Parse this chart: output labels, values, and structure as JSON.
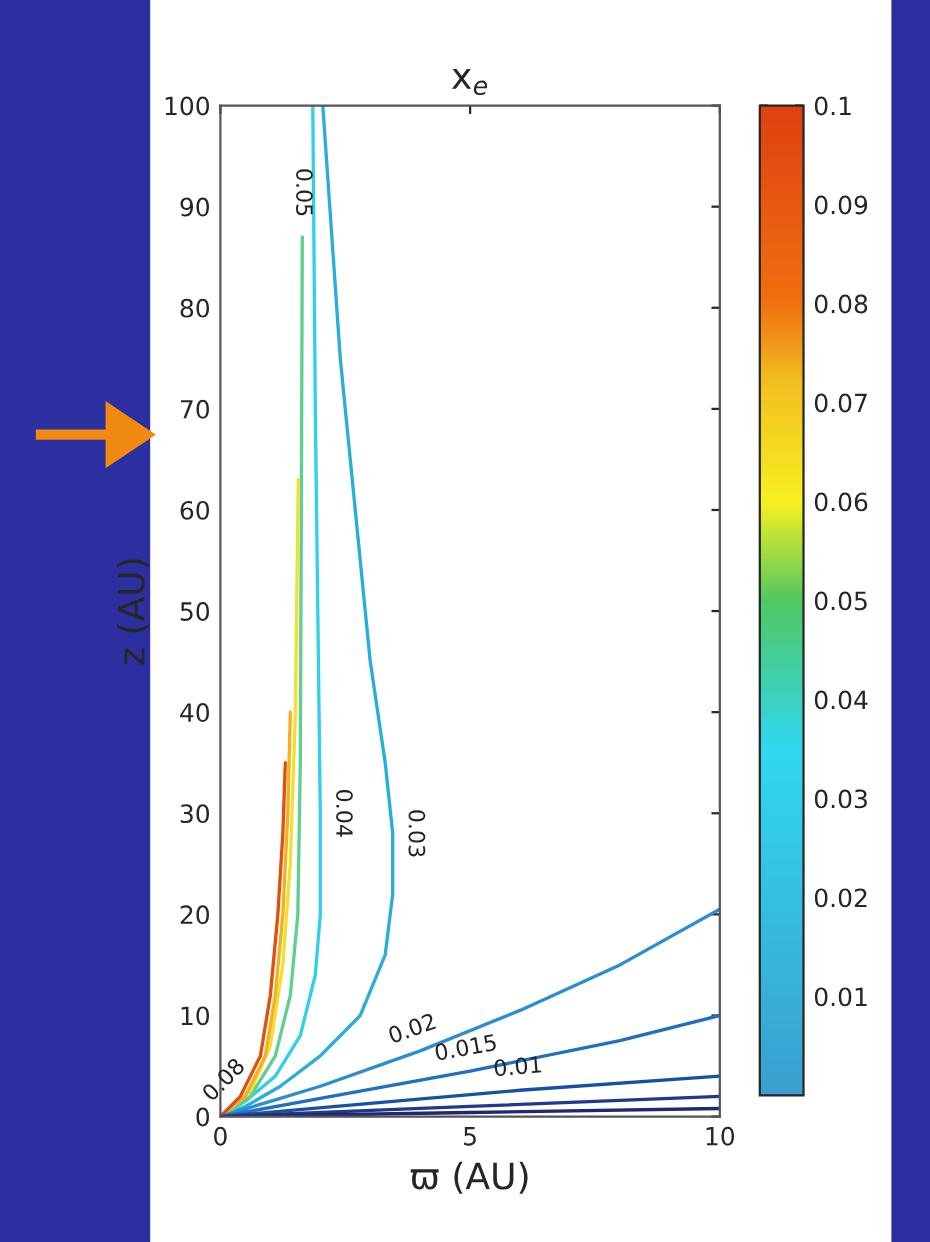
{
  "chart_data": {
    "type": "line",
    "title": "x$_{e}$",
    "xlabel": "ϖ (AU)",
    "ylabel": "z (AU)",
    "xlim": [
      0,
      10
    ],
    "ylim": [
      0,
      100
    ],
    "xticks": [
      0,
      5,
      10
    ],
    "yticks": [
      0,
      10,
      20,
      30,
      40,
      50,
      60,
      70,
      80,
      90,
      100
    ],
    "clim": [
      0,
      0.1
    ],
    "cticks": [
      0.01,
      0.02,
      0.03,
      0.04,
      0.05,
      0.06,
      0.07,
      0.08,
      0.09,
      0.1
    ],
    "grid": false,
    "legend": false,
    "marker": "none",
    "line_style": "solid",
    "annotations": [
      {
        "text": "0.03",
        "x": 3.45,
        "y": 28
      },
      {
        "text": "0.04",
        "x": 2.0,
        "y": 30
      },
      {
        "text": "0.05",
        "x": 1.64,
        "y": 87
      },
      {
        "text": "0.08",
        "x": 0.4,
        "y": 2
      },
      {
        "text": "0.02",
        "x": 4,
        "y": 6.5
      },
      {
        "text": "0.015",
        "x": 5,
        "y": 4.5
      },
      {
        "text": "0.01",
        "x": 6,
        "y": 2.6
      }
    ],
    "series": [
      {
        "color": "#2aaed8",
        "x": [
          0,
          0.5,
          1.2,
          2.0,
          2.8,
          3.3,
          3.45,
          3.45,
          3.3,
          3.0,
          2.7,
          2.4,
          2.05
        ],
        "values": [
          0,
          1,
          3,
          6,
          10,
          16,
          22,
          28,
          35,
          45,
          60,
          75,
          100
        ]
      },
      {
        "color": "#30d0e8",
        "x": [
          0,
          0.5,
          1.1,
          1.6,
          1.9,
          2.0,
          2.0,
          1.95,
          1.9,
          1.85
        ],
        "values": [
          0,
          1.5,
          4,
          8,
          14,
          20,
          30,
          50,
          70,
          100
        ]
      },
      {
        "color": "#60d090",
        "x": [
          0,
          0.6,
          1.1,
          1.4,
          1.55,
          1.6,
          1.62,
          1.64
        ],
        "values": [
          0,
          2,
          6,
          12,
          20,
          35,
          60,
          87
        ]
      },
      {
        "color": "#f0e030",
        "x": [
          0,
          0.6,
          1.0,
          1.25,
          1.4,
          1.5,
          1.56
        ],
        "values": [
          0,
          2.5,
          7,
          15,
          25,
          40,
          63
        ]
      },
      {
        "color": "#f8b020",
        "x": [
          0,
          0.5,
          0.9,
          1.1,
          1.25,
          1.35,
          1.4
        ],
        "values": [
          0,
          2,
          6,
          12,
          20,
          30,
          40
        ]
      },
      {
        "color": "#e05010",
        "x": [
          0,
          0.4,
          0.8,
          1.0,
          1.15,
          1.25,
          1.3
        ],
        "values": [
          0,
          2,
          6,
          12,
          20,
          28,
          35
        ]
      },
      {
        "color": "#2a8ed0",
        "x": [
          0,
          1,
          2,
          4,
          6,
          8,
          10
        ],
        "values": [
          0,
          1.5,
          3,
          6.5,
          10.5,
          15,
          20.5
        ]
      },
      {
        "color": "#2070c0",
        "x": [
          0,
          2,
          5,
          8,
          10
        ],
        "values": [
          0,
          1.8,
          4.5,
          7.5,
          10
        ]
      },
      {
        "color": "#1850a8",
        "x": [
          0,
          3,
          6,
          10
        ],
        "values": [
          0,
          1.3,
          2.6,
          4
        ]
      },
      {
        "color": "#203890",
        "x": [
          0,
          5,
          10
        ],
        "values": [
          0,
          1,
          2
        ]
      },
      {
        "color": "#202870",
        "x": [
          0,
          5,
          10
        ],
        "values": [
          0,
          0.4,
          0.8
        ]
      }
    ]
  }
}
